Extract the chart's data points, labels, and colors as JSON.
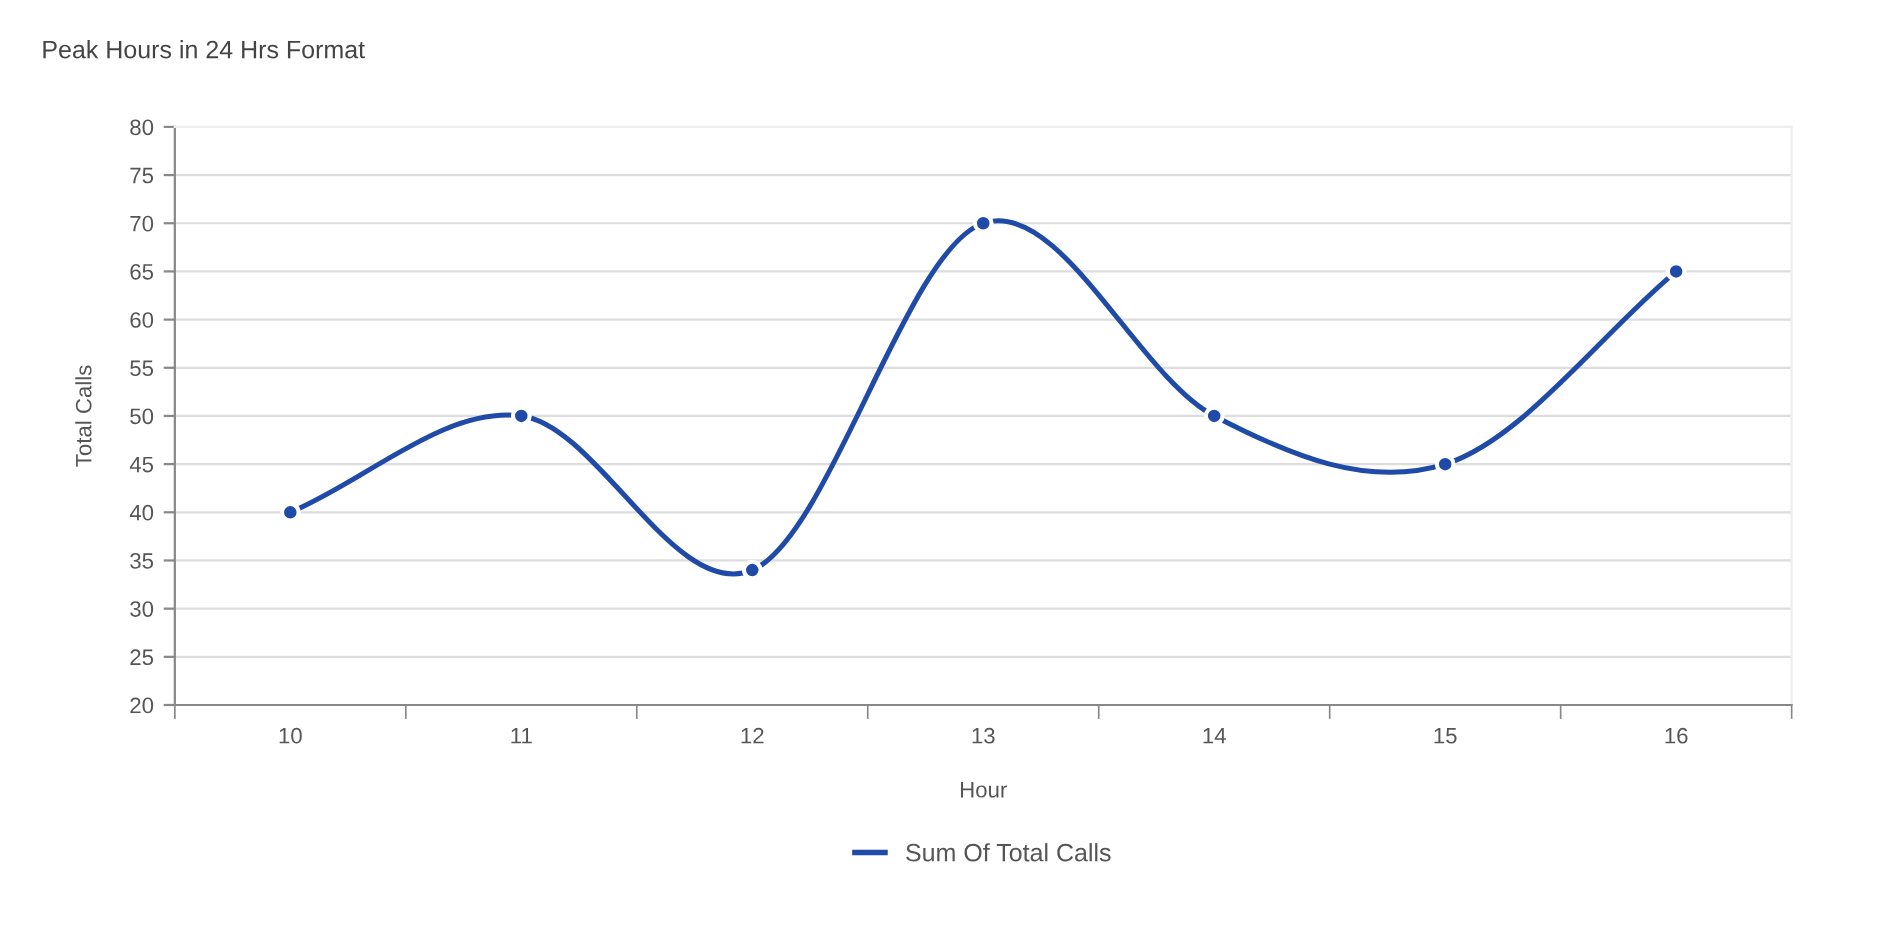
{
  "chart_data": {
    "type": "line",
    "title": "Peak Hours in 24 Hrs Format",
    "xlabel": "Hour",
    "ylabel": "Total Calls",
    "categories": [
      "10",
      "11",
      "12",
      "13",
      "14",
      "15",
      "16"
    ],
    "series": [
      {
        "name": "Sum Of Total Calls",
        "color": "#1f4aa8",
        "values": [
          40,
          50,
          34,
          70,
          50,
          45,
          65
        ]
      }
    ],
    "ylim": [
      20,
      80
    ],
    "yticks": [
      20,
      25,
      30,
      35,
      40,
      45,
      50,
      55,
      60,
      65,
      70,
      75,
      80
    ],
    "grid": "y",
    "legend": "bottom",
    "marker": "circle",
    "line_style": "solid"
  }
}
